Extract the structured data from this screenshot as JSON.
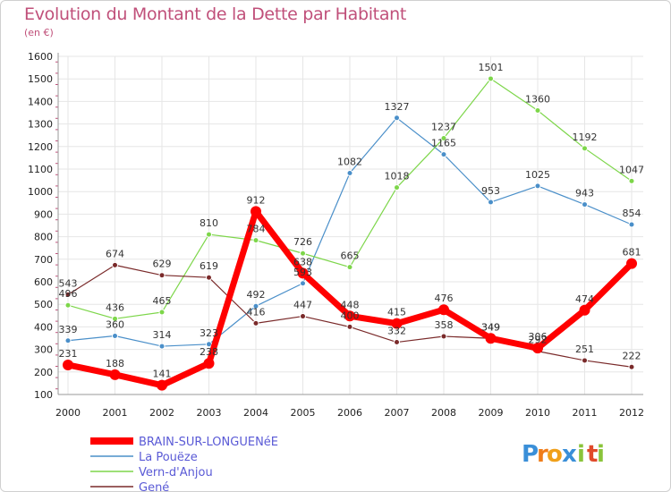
{
  "chart_data": {
    "type": "line",
    "title": "Evolution du Montant de la Dette par Habitant",
    "subtitle": "(en €)",
    "x": [
      "2000",
      "2001",
      "2002",
      "2003",
      "2004",
      "2005",
      "2006",
      "2007",
      "2008",
      "2009",
      "2010",
      "2011",
      "2012"
    ],
    "yticks": [
      "100",
      "200",
      "300",
      "400",
      "500",
      "600",
      "700",
      "800",
      "900",
      "1000",
      "1100",
      "1200",
      "1300",
      "1400",
      "1500",
      "1600"
    ],
    "ylim": [
      100,
      1600
    ],
    "grid": true,
    "legend": "bottom-left",
    "series": [
      {
        "name": "BRAIN-SUR-LONGUENéE",
        "color": "#ff0000",
        "width": 7,
        "point_radius": 6,
        "values": [
          231,
          188,
          141,
          238,
          912,
          638,
          448,
          415,
          476,
          349,
          306,
          474,
          681
        ],
        "labels": [
          "231",
          "188",
          "141",
          "238",
          "912",
          "638",
          "448",
          "415",
          "476",
          "349",
          "306",
          "474",
          "681"
        ]
      },
      {
        "name": "La Pouëze",
        "color": "#4a8fc9",
        "width": 1.2,
        "point_radius": 3,
        "values": [
          339,
          360,
          314,
          323,
          492,
          593,
          1082,
          1327,
          1165,
          953,
          1025,
          943,
          854
        ],
        "labels": [
          "339",
          "360",
          "314",
          "323",
          "492",
          "593",
          "1082",
          "1327",
          "1165",
          "953",
          "1025",
          "943",
          "854"
        ]
      },
      {
        "name": "Vern-d'Anjou",
        "color": "#7dd64a",
        "width": 1.2,
        "point_radius": 3,
        "values": [
          496,
          436,
          465,
          810,
          784,
          726,
          665,
          1018,
          1237,
          1501,
          1360,
          1192,
          1047
        ],
        "labels": [
          "496",
          "436",
          "465",
          "810",
          "784",
          "726",
          "665",
          "1018",
          "1237",
          "1501",
          "1360",
          "1192",
          "1047"
        ]
      },
      {
        "name": "Gené",
        "color": "#7a2a2a",
        "width": 1.2,
        "point_radius": 3,
        "values": [
          543,
          674,
          629,
          619,
          416,
          447,
          400,
          332,
          358,
          349,
          292,
          251,
          222
        ],
        "labels": [
          "543",
          "674",
          "629",
          "619",
          "416",
          "447",
          "400",
          "332",
          "358",
          "349",
          "292",
          "251",
          "222"
        ]
      }
    ]
  },
  "logo": {
    "text": "Proxiti",
    "letters": [
      "P",
      "r",
      "o",
      "x",
      "i",
      "t",
      "i"
    ],
    "colors": [
      "#3a8fd8",
      "#f07d1a",
      "#f0a01a",
      "#3a8fd8",
      "#8ac43a",
      "#e04a2a",
      "#8ac43a"
    ]
  }
}
